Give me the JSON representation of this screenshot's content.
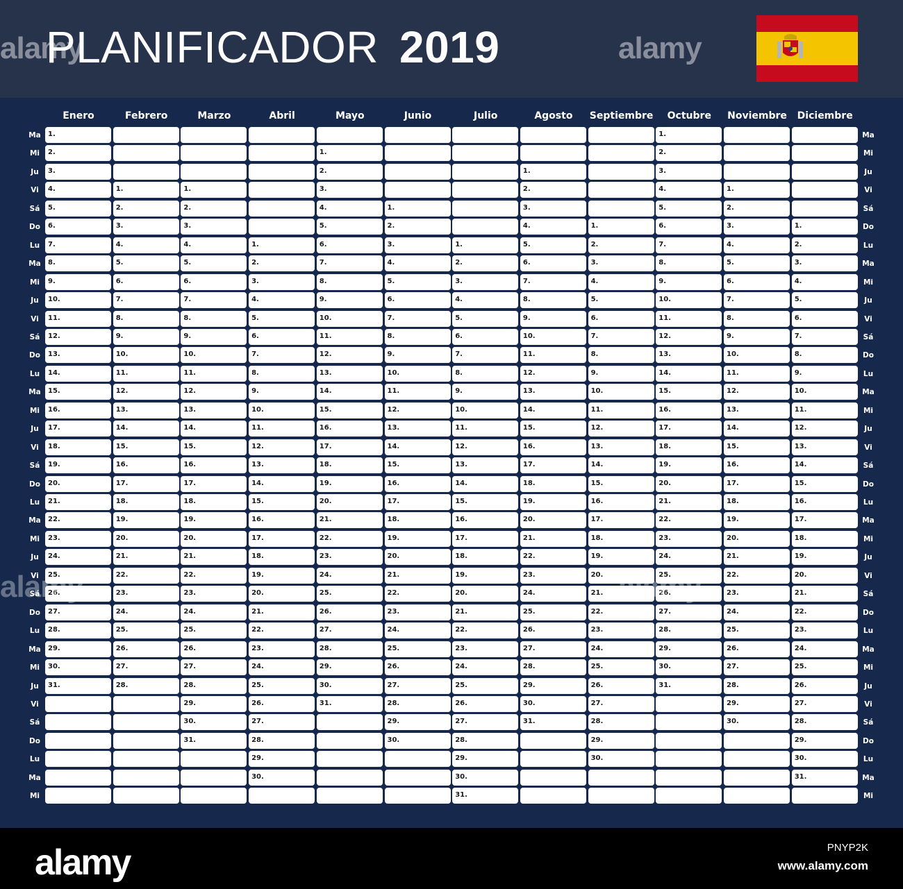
{
  "header": {
    "title": "PLANIFICADOR",
    "year": "2019"
  },
  "flag": {
    "name": "spain-flag-icon",
    "colors": {
      "red": "#c60b1e",
      "yellow": "#f5c400"
    }
  },
  "months": [
    "Enero",
    "Febrero",
    "Marzo",
    "Abril",
    "Mayo",
    "Junio",
    "Julio",
    "Agosto",
    "Septiembre",
    "Octubre",
    "Noviembre",
    "Diciembre"
  ],
  "weekday_labels": [
    "Ma",
    "Mi",
    "Ju",
    "Vi",
    "Sá",
    "Do",
    "Lu",
    "Ma",
    "Mi",
    "Ju",
    "Vi",
    "Sá",
    "Do",
    "Lu",
    "Ma",
    "Mi",
    "Ju",
    "Vi",
    "Sá",
    "Do",
    "Lu",
    "Ma",
    "Mi",
    "Ju",
    "Vi",
    "Sá",
    "Do",
    "Lu",
    "Ma",
    "Mi",
    "Ju",
    "Vi",
    "Sá",
    "Do",
    "Lu",
    "Ma",
    "Mi"
  ],
  "calendar": {
    "days_in_month": [
      31,
      28,
      31,
      30,
      31,
      30,
      31,
      31,
      30,
      31,
      30,
      31
    ],
    "first_row_index": [
      0,
      3,
      3,
      6,
      1,
      4,
      6,
      2,
      5,
      0,
      3,
      5
    ]
  },
  "watermark": {
    "logo_text": "alamy",
    "image_id": "PNYP2K",
    "url": "www.alamy.com"
  },
  "colors": {
    "header_bg": "#27324b",
    "grid_bg": "#16284b",
    "cell_bg": "#ffffff"
  }
}
